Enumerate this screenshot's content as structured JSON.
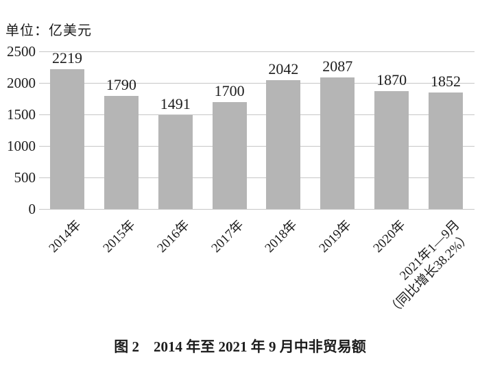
{
  "chart_data": {
    "type": "bar",
    "unit_label": "单位：亿美元",
    "title": "图 2　2014 年至 2021 年 9 月中非贸易额",
    "categories": [
      "2014年",
      "2015年",
      "2016年",
      "2017年",
      "2018年",
      "2019年",
      "2020年",
      "2021年1—9月\n（同比增长38.2%）"
    ],
    "values": [
      2219,
      1790,
      1491,
      1700,
      2042,
      2087,
      1870,
      1852
    ],
    "xlabel": "",
    "ylabel": "",
    "ylim": [
      0,
      2500
    ],
    "yticks": [
      0,
      500,
      1000,
      1500,
      2000,
      2500
    ],
    "grid": "horizontal",
    "legend_position": "none",
    "bar_color": "#b5b5b5",
    "gridline_color": "#c6c6c6",
    "text_color": "#1c1c1c"
  }
}
